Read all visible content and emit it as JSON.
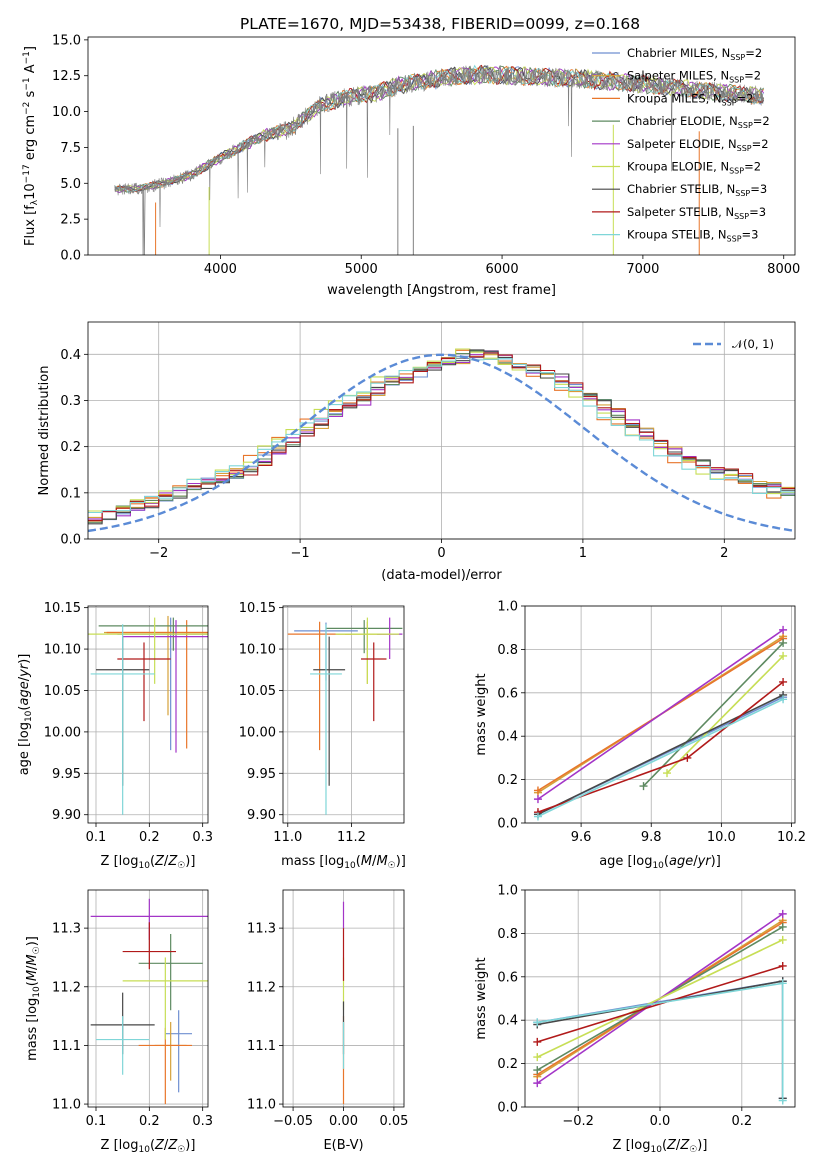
{
  "figure": {
    "title": "PLATE=1670, MJD=53438, FIBERID=0099, z=0.168"
  },
  "models": [
    {
      "name": "Chabrier MILES",
      "nssp": "2",
      "color": "#6f8fd1"
    },
    {
      "name": "Salpeter MILES",
      "nssp": "2",
      "color": "#d6a23b"
    },
    {
      "name": "Kroupa MILES",
      "nssp": "2",
      "color": "#e8762b"
    },
    {
      "name": "Chabrier ELODIE",
      "nssp": "2",
      "color": "#5e8a61"
    },
    {
      "name": "Salpeter ELODIE",
      "nssp": "2",
      "color": "#a335c7"
    },
    {
      "name": "Kroupa ELODIE",
      "nssp": "2",
      "color": "#c7de55"
    },
    {
      "name": "Chabrier STELIB",
      "nssp": "3",
      "color": "#474747"
    },
    {
      "name": "Salpeter STELIB",
      "nssp": "3",
      "color": "#b11a1a"
    },
    {
      "name": "Kroupa STELIB",
      "nssp": "3",
      "color": "#7fd6d8"
    }
  ],
  "chart_data": [
    {
      "id": "spectrum",
      "type": "line",
      "xlabel": "wavelength [Angstrom, rest frame]",
      "ylabel": "Flux [f_λ 10^-17 erg cm^-2 s^-1 A^-1]",
      "xlim": [
        3060,
        8080
      ],
      "ylim": [
        0,
        15.2
      ],
      "xticks": [
        4000,
        5000,
        6000,
        7000,
        8000
      ],
      "yticks": [
        0.0,
        2.5,
        5.0,
        7.5,
        10.0,
        12.5,
        15.0
      ],
      "ytick_labels": [
        "0.0",
        "2.5",
        "5.0",
        "7.5",
        "10.0",
        "12.5",
        "15.0"
      ],
      "data_color": "#808080",
      "continuum_points": [
        [
          3250,
          4.6
        ],
        [
          3400,
          4.6
        ],
        [
          3600,
          5.0
        ],
        [
          3800,
          5.6
        ],
        [
          3950,
          6.5
        ],
        [
          4100,
          7.3
        ],
        [
          4300,
          8.3
        ],
        [
          4500,
          8.8
        ],
        [
          4700,
          10.4
        ],
        [
          4900,
          11.0
        ],
        [
          5100,
          11.3
        ],
        [
          5300,
          11.9
        ],
        [
          5500,
          12.2
        ],
        [
          5700,
          12.5
        ],
        [
          5900,
          12.6
        ],
        [
          6100,
          12.5
        ],
        [
          6300,
          12.4
        ],
        [
          6500,
          12.3
        ],
        [
          6700,
          12.2
        ],
        [
          7000,
          11.9
        ],
        [
          7300,
          11.6
        ],
        [
          7600,
          11.3
        ],
        [
          7850,
          11.1
        ]
      ]
    },
    {
      "id": "residuals",
      "type": "histogram",
      "xlabel": "(data-model)/error",
      "ylabel": "Normed distribution",
      "xlim": [
        -2.5,
        2.5
      ],
      "ylim": [
        0,
        0.47
      ],
      "xticks": [
        -2,
        -1,
        0,
        1,
        2
      ],
      "xtick_labels": [
        "−2",
        "−1",
        "0",
        "1",
        "2"
      ],
      "yticks": [
        0.0,
        0.1,
        0.2,
        0.3,
        0.4
      ],
      "ytick_labels": [
        "0.0",
        "0.1",
        "0.2",
        "0.3",
        "0.4"
      ],
      "bin_width": 0.1,
      "reference": {
        "label": "𝒩(0, 1)",
        "mean": 0,
        "sigma": 1,
        "color": "#5b8bd6"
      },
      "base_profile": [
        0.02,
        0.022,
        0.025,
        0.03,
        0.035,
        0.04,
        0.05,
        0.06,
        0.07,
        0.08,
        0.09,
        0.1,
        0.11,
        0.12,
        0.13,
        0.14,
        0.15,
        0.17,
        0.19,
        0.21,
        0.23,
        0.25,
        0.27,
        0.29,
        0.3,
        0.32,
        0.34,
        0.35,
        0.36,
        0.37,
        0.38,
        0.39,
        0.4,
        0.4,
        0.39,
        0.38,
        0.37,
        0.36,
        0.35,
        0.33,
        0.31,
        0.29,
        0.27,
        0.25,
        0.23,
        0.21,
        0.19,
        0.17,
        0.16,
        0.15,
        0.14,
        0.13,
        0.12,
        0.11,
        0.1,
        0.09,
        0.08,
        0.07,
        0.06,
        0.055
      ]
    },
    {
      "id": "age-vs-Z",
      "type": "scatter",
      "xlabel": "Z [log10(Z/Z☉)]",
      "ylabel": "age [log10(age/yr)]",
      "xlim": [
        0.085,
        0.31
      ],
      "ylim": [
        9.89,
        10.152
      ],
      "xticks": [
        0.1,
        0.2,
        0.3
      ],
      "xtick_labels": [
        "0.1",
        "0.2",
        "0.3"
      ],
      "yticks": [
        9.9,
        9.95,
        10.0,
        10.05,
        10.1,
        10.15
      ],
      "ytick_labels": [
        "9.90",
        "9.95",
        "10.00",
        "10.05",
        "10.10",
        "10.15"
      ],
      "points": [
        {
          "model": 0,
          "x": 0.24,
          "y": 10.118,
          "xerr": 0.1,
          "yerr": [
            0.14,
            0.02
          ]
        },
        {
          "model": 1,
          "x": 0.235,
          "y": 10.12,
          "xerr": 0.12,
          "yerr": [
            0.1,
            0.02
          ]
        },
        {
          "model": 2,
          "x": 0.27,
          "y": 10.12,
          "xerr": 0.15,
          "yerr": [
            0.14,
            0.015
          ]
        },
        {
          "model": 3,
          "x": 0.245,
          "y": 10.128,
          "xerr": 0.14,
          "yerr": [
            0.03,
            0.01
          ]
        },
        {
          "model": 4,
          "x": 0.25,
          "y": 10.115,
          "xerr": 0.1,
          "yerr": [
            0.14,
            0.02
          ]
        },
        {
          "model": 5,
          "x": 0.21,
          "y": 10.118,
          "xerr": 0.18,
          "yerr": [
            0.06,
            0.02
          ]
        },
        {
          "model": 6,
          "x": 0.15,
          "y": 10.075,
          "xerr": 0.05,
          "yerr": [
            0.14,
            0.04
          ]
        },
        {
          "model": 7,
          "x": 0.19,
          "y": 10.088,
          "xerr": 0.05,
          "yerr": [
            0.075,
            0.02
          ]
        },
        {
          "model": 8,
          "x": 0.15,
          "y": 10.07,
          "xerr": 0.06,
          "yerr": [
            0.17,
            0.06
          ]
        }
      ]
    },
    {
      "id": "age-vs-mass",
      "type": "scatter",
      "xlabel": "mass [log10(M/M☉)]",
      "ylabel": "",
      "xlim": [
        10.985,
        11.365
      ],
      "ylim": [
        9.89,
        10.152
      ],
      "xticks": [
        11.0,
        11.2
      ],
      "xtick_labels": [
        "11.0",
        "11.2"
      ],
      "yticks": [
        9.9,
        9.95,
        10.0,
        10.05,
        10.1,
        10.15
      ],
      "ytick_labels": [
        "9.90",
        "9.95",
        "10.00",
        "10.05",
        "10.10",
        "10.15"
      ],
      "points": [
        {
          "model": 0,
          "x": 11.12,
          "y": 10.122,
          "xerr": 0.1,
          "yerr": [
            0.06,
            0.01
          ]
        },
        {
          "model": 1,
          "x": 11.25,
          "y": 10.118,
          "xerr": 0.07,
          "yerr": [
            0.06,
            0.015
          ]
        },
        {
          "model": 2,
          "x": 11.1,
          "y": 10.118,
          "xerr": 0.1,
          "yerr": [
            0.14,
            0.015
          ]
        },
        {
          "model": 3,
          "x": 11.24,
          "y": 10.125,
          "xerr": 0.12,
          "yerr": [
            0.03,
            0.01
          ]
        },
        {
          "model": 4,
          "x": 11.32,
          "y": 10.118,
          "xerr": 0.04,
          "yerr": [
            0.03,
            0.02
          ]
        },
        {
          "model": 5,
          "x": 11.25,
          "y": 10.118,
          "xerr": 0.1,
          "yerr": [
            0.06,
            0.02
          ]
        },
        {
          "model": 6,
          "x": 11.13,
          "y": 10.075,
          "xerr": 0.05,
          "yerr": [
            0.14,
            0.04
          ]
        },
        {
          "model": 7,
          "x": 11.27,
          "y": 10.088,
          "xerr": 0.04,
          "yerr": [
            0.075,
            0.02
          ]
        },
        {
          "model": 8,
          "x": 11.12,
          "y": 10.07,
          "xerr": 0.05,
          "yerr": [
            0.17,
            0.06
          ]
        }
      ]
    },
    {
      "id": "massweight-vs-age",
      "type": "line",
      "xlabel": "age [log10(age/yr)]",
      "ylabel": "mass weight",
      "xlim": [
        9.44,
        10.21
      ],
      "ylim": [
        0,
        1.0
      ],
      "xticks": [
        9.6,
        9.8,
        10.0,
        10.2
      ],
      "xtick_labels": [
        "9.6",
        "9.8",
        "10.0",
        "10.2"
      ],
      "yticks": [
        0.0,
        0.2,
        0.4,
        0.6,
        0.8,
        1.0
      ],
      "ytick_labels": [
        "0.0",
        "0.2",
        "0.4",
        "0.6",
        "0.8",
        "1.0"
      ],
      "series": [
        {
          "model": 0,
          "x": [
            9.477,
            10.176
          ],
          "y": [
            0.04,
            0.58
          ]
        },
        {
          "model": 1,
          "x": [
            9.477,
            10.176
          ],
          "y": [
            0.14,
            0.86
          ]
        },
        {
          "model": 2,
          "x": [
            9.477,
            10.176
          ],
          "y": [
            0.15,
            0.85
          ]
        },
        {
          "model": 3,
          "x": [
            9.778,
            10.176
          ],
          "y": [
            0.17,
            0.83
          ]
        },
        {
          "model": 4,
          "x": [
            9.477,
            10.176
          ],
          "y": [
            0.11,
            0.89
          ]
        },
        {
          "model": 5,
          "x": [
            9.845,
            10.176
          ],
          "y": [
            0.23,
            0.77
          ]
        },
        {
          "model": 6,
          "x": [
            9.477,
            10.176
          ],
          "y": [
            0.04,
            0.59
          ]
        },
        {
          "model": 7,
          "x": [
            9.477,
            9.903,
            10.176
          ],
          "y": [
            0.05,
            0.3,
            0.65
          ]
        },
        {
          "model": 8,
          "x": [
            9.477,
            10.176
          ],
          "y": [
            0.03,
            0.57
          ]
        }
      ]
    },
    {
      "id": "mass-vs-Z",
      "type": "scatter",
      "xlabel": "Z [log10(Z/Z☉)]",
      "ylabel": "mass [log10(M/M☉)]",
      "xlim": [
        0.085,
        0.31
      ],
      "ylim": [
        10.995,
        11.365
      ],
      "xticks": [
        0.1,
        0.2,
        0.3
      ],
      "xtick_labels": [
        "0.1",
        "0.2",
        "0.3"
      ],
      "yticks": [
        11.0,
        11.1,
        11.2,
        11.3
      ],
      "ytick_labels": [
        "11.0",
        "11.1",
        "11.2",
        "11.3"
      ],
      "points": [
        {
          "model": 0,
          "x": 0.255,
          "y": 11.12,
          "xerr": 0.025,
          "yerr": [
            0.1,
            0.04
          ]
        },
        {
          "model": 1,
          "x": 0.24,
          "y": 11.1,
          "xerr": 0.03,
          "yerr": [
            0.06,
            0.04
          ]
        },
        {
          "model": 2,
          "x": 0.23,
          "y": 11.1,
          "xerr": 0.05,
          "yerr": [
            0.1,
            0.03
          ]
        },
        {
          "model": 3,
          "x": 0.24,
          "y": 11.24,
          "xerr": 0.06,
          "yerr": [
            0.08,
            0.05
          ]
        },
        {
          "model": 4,
          "x": 0.2,
          "y": 11.32,
          "xerr": 0.11,
          "yerr": [
            0.04,
            0.03
          ]
        },
        {
          "model": 5,
          "x": 0.23,
          "y": 11.21,
          "xerr": 0.08,
          "yerr": [
            0.1,
            0.04
          ]
        },
        {
          "model": 6,
          "x": 0.15,
          "y": 11.135,
          "xerr": 0.06,
          "yerr": [
            0.05,
            0.055
          ]
        },
        {
          "model": 7,
          "x": 0.2,
          "y": 11.26,
          "xerr": 0.05,
          "yerr": [
            0.03,
            0.05
          ]
        },
        {
          "model": 8,
          "x": 0.15,
          "y": 11.11,
          "xerr": 0.05,
          "yerr": [
            0.06,
            0.04
          ]
        }
      ]
    },
    {
      "id": "mass-vs-ebv",
      "type": "scatter",
      "xlabel": "E(B-V)",
      "ylabel": "",
      "xlim": [
        -0.06,
        0.06
      ],
      "ylim": [
        10.995,
        11.365
      ],
      "xticks": [
        -0.05,
        0.0,
        0.05
      ],
      "xtick_labels": [
        "−0.05",
        "0.00",
        "0.05"
      ],
      "yticks": [
        11.0,
        11.1,
        11.2,
        11.3
      ],
      "ytick_labels": [
        "11.0",
        "11.1",
        "11.2",
        "11.3"
      ],
      "points": [
        {
          "model": 2,
          "x": 0.0,
          "y": 11.1,
          "xerr": 0,
          "yerr": [
            0.1,
            0.05
          ]
        },
        {
          "model": 5,
          "x": 0.0,
          "y": 11.21,
          "xerr": 0,
          "yerr": [
            0.05,
            0.04
          ]
        },
        {
          "model": 7,
          "x": 0.0,
          "y": 11.26,
          "xerr": 0,
          "yerr": [
            0.05,
            0.04
          ]
        },
        {
          "model": 4,
          "x": 0.0,
          "y": 11.32,
          "xerr": 0,
          "yerr": [
            0.02,
            0.025
          ]
        },
        {
          "model": 6,
          "x": 0.0,
          "y": 11.135,
          "xerr": 0,
          "yerr": [
            0.05,
            0.04
          ]
        },
        {
          "model": 8,
          "x": 0.0,
          "y": 11.11,
          "xerr": 0,
          "yerr": [
            0.05,
            0.03
          ]
        }
      ]
    },
    {
      "id": "massweight-vs-Z",
      "type": "line",
      "xlabel": "Z [log10(Z/Z☉)]",
      "ylabel": "mass weight",
      "xlim": [
        -0.33,
        0.33
      ],
      "ylim": [
        0,
        1.0
      ],
      "xticks": [
        -0.2,
        0.0,
        0.2
      ],
      "xtick_labels": [
        "−0.2",
        "0.0",
        "0.2"
      ],
      "yticks": [
        0.0,
        0.2,
        0.4,
        0.6,
        0.8,
        1.0
      ],
      "ytick_labels": [
        "0.0",
        "0.2",
        "0.4",
        "0.6",
        "0.8",
        "1.0"
      ],
      "series": [
        {
          "model": 0,
          "x": [
            -0.3,
            0.3,
            0.3
          ],
          "y": [
            0.39,
            0.58,
            0.04
          ]
        },
        {
          "model": 1,
          "x": [
            -0.3,
            0.3
          ],
          "y": [
            0.14,
            0.86
          ]
        },
        {
          "model": 2,
          "x": [
            -0.3,
            0.3
          ],
          "y": [
            0.15,
            0.85
          ]
        },
        {
          "model": 3,
          "x": [
            -0.3,
            0.3
          ],
          "y": [
            0.17,
            0.83
          ]
        },
        {
          "model": 4,
          "x": [
            -0.3,
            0.3
          ],
          "y": [
            0.11,
            0.89
          ]
        },
        {
          "model": 5,
          "x": [
            -0.3,
            0.3
          ],
          "y": [
            0.23,
            0.77
          ]
        },
        {
          "model": 6,
          "x": [
            -0.3,
            0.3,
            0.3
          ],
          "y": [
            0.38,
            0.58,
            0.04
          ]
        },
        {
          "model": 7,
          "x": [
            -0.3,
            0.3
          ],
          "y": [
            0.3,
            0.65
          ]
        },
        {
          "model": 8,
          "x": [
            -0.3,
            0.3,
            0.3
          ],
          "y": [
            0.39,
            0.57,
            0.03
          ]
        }
      ]
    }
  ]
}
